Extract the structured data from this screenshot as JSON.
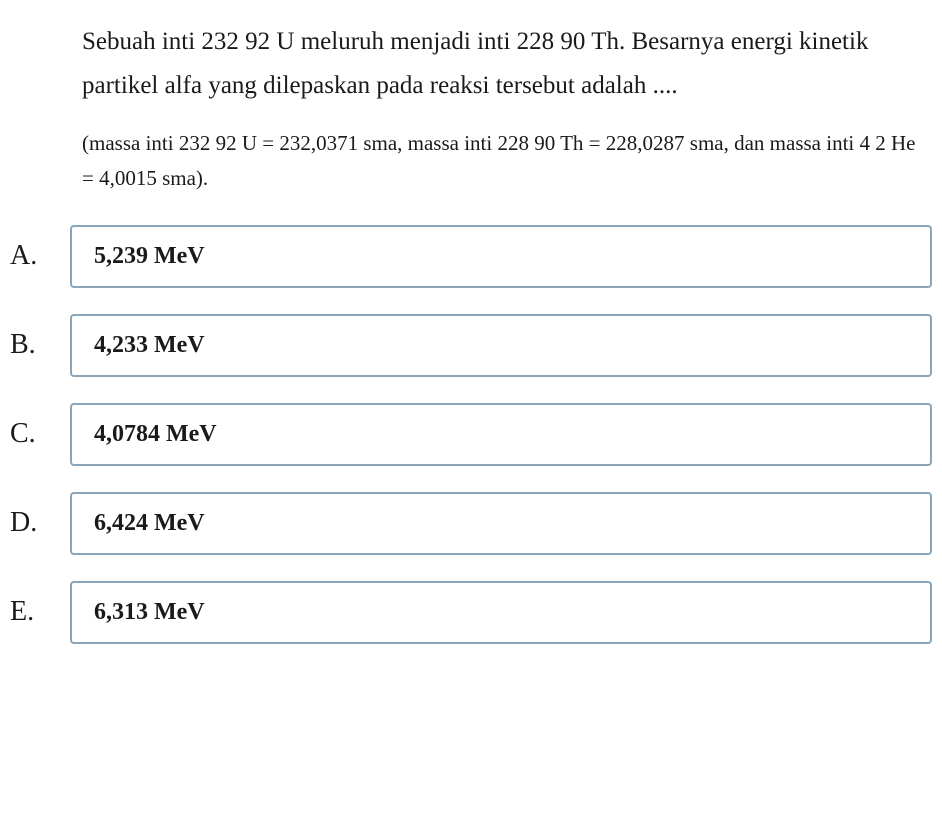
{
  "question": {
    "main_text": "Sebuah inti 232 92 U meluruh menjadi inti 228 90 Th. Besarnya energi kinetik partikel alfa yang dilepaskan pada reaksi tersebut adalah ....",
    "note_text": "(massa inti 232 92 U = 232,0371 sma, massa inti 228 90 Th = 228,0287 sma, dan massa inti 4 2 He = 4,0015 sma)."
  },
  "options": [
    {
      "letter": "A.",
      "value": "5,239 MeV"
    },
    {
      "letter": "B.",
      "value": "4,233 MeV"
    },
    {
      "letter": "C.",
      "value": "4,0784 MeV"
    },
    {
      "letter": "D.",
      "value": "6,424 MeV"
    },
    {
      "letter": "E.",
      "value": "6,313 MeV"
    }
  ],
  "styling": {
    "option_border_color": "#8aa5b8",
    "option_border_radius": 4,
    "option_font_size": 24,
    "option_font_weight": "bold",
    "question_font_size": 25,
    "note_font_size": 21,
    "letter_font_size": 28,
    "background_color": "#ffffff",
    "text_color": "#1a1a1a"
  }
}
